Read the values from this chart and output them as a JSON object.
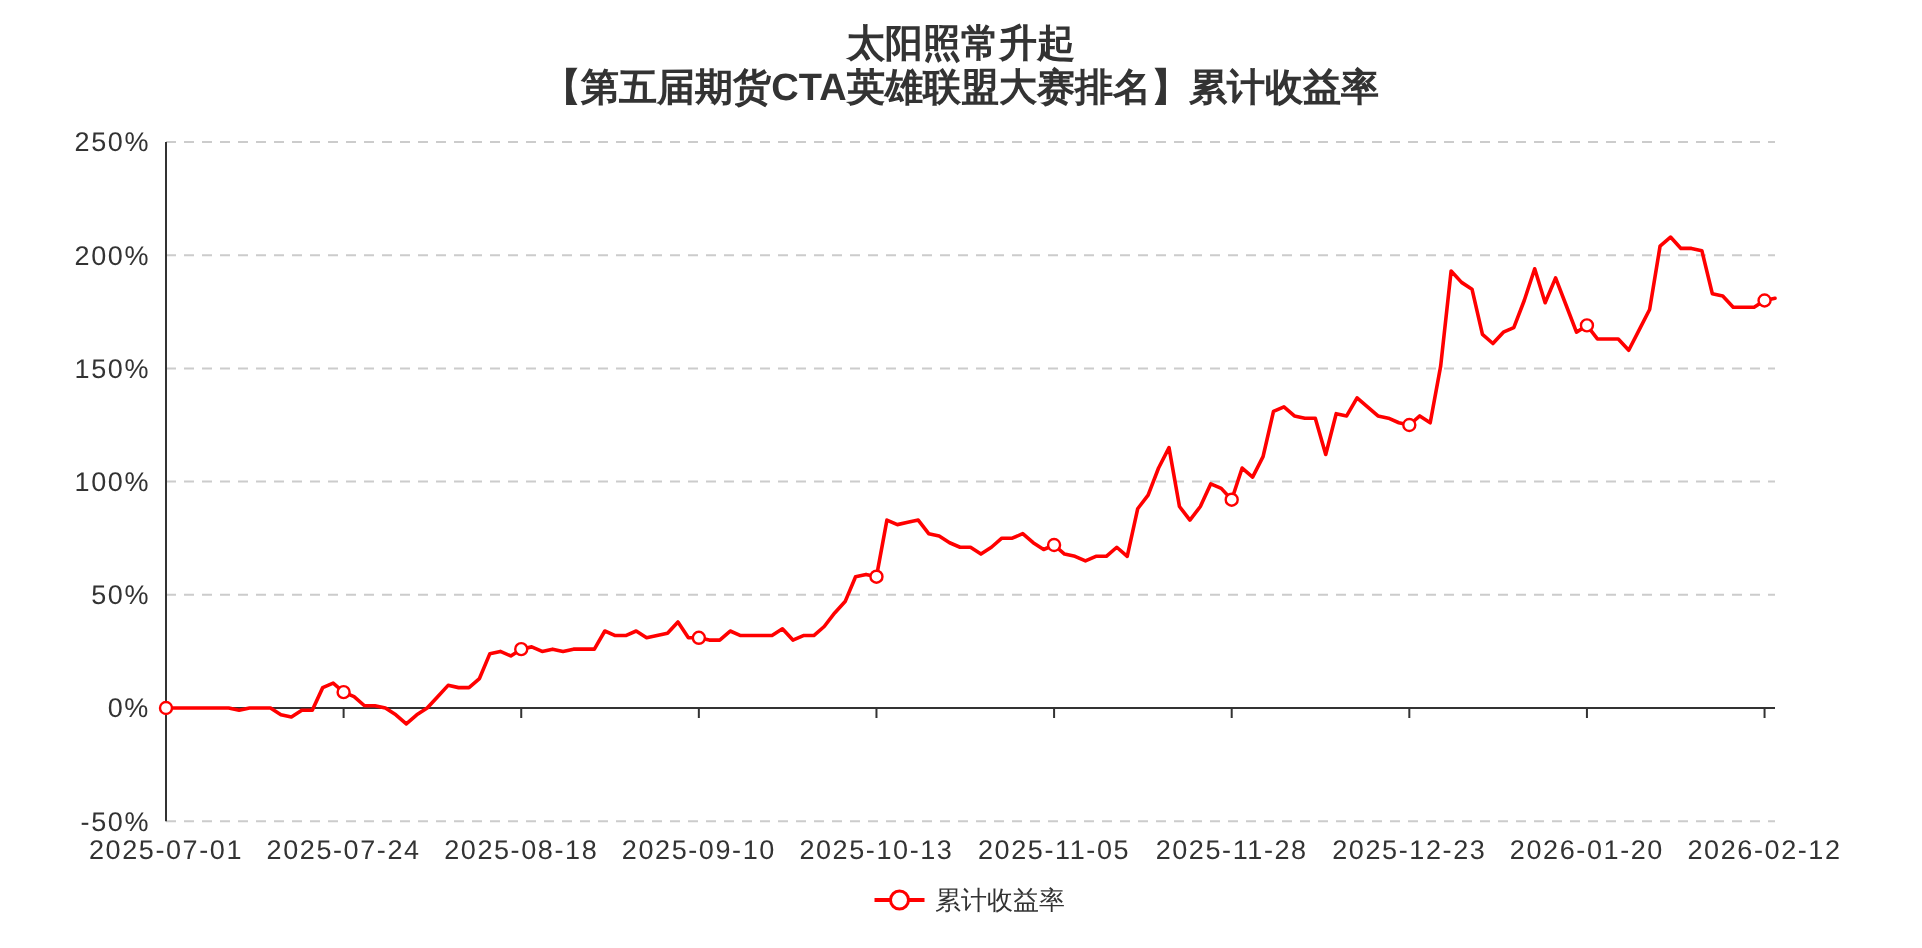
{
  "chart_data": {
    "type": "line",
    "title": "太阳照常升起",
    "subtitle": "【第五届期货CTA英雄联盟大赛排名】累计收益率",
    "categories": [
      "2025-07-01",
      null,
      null,
      null,
      null,
      null,
      null,
      null,
      null,
      null,
      null,
      null,
      null,
      null,
      null,
      null,
      null,
      "2025-07-24",
      null,
      null,
      null,
      null,
      null,
      null,
      null,
      null,
      null,
      null,
      null,
      null,
      null,
      null,
      null,
      null,
      "2025-08-18",
      null,
      null,
      null,
      null,
      null,
      null,
      null,
      null,
      null,
      null,
      null,
      null,
      null,
      null,
      null,
      null,
      "2025-09-10",
      null,
      null,
      null,
      null,
      null,
      null,
      null,
      null,
      null,
      null,
      null,
      null,
      null,
      null,
      null,
      null,
      "2025-10-13",
      null,
      null,
      null,
      null,
      null,
      null,
      null,
      null,
      null,
      null,
      null,
      null,
      null,
      null,
      null,
      null,
      "2025-11-05",
      null,
      null,
      null,
      null,
      null,
      null,
      null,
      null,
      null,
      null,
      null,
      null,
      null,
      null,
      null,
      null,
      "2025-11-28",
      null,
      null,
      null,
      null,
      null,
      null,
      null,
      null,
      null,
      null,
      null,
      null,
      null,
      null,
      null,
      null,
      "2025-12-23",
      null,
      null,
      null,
      null,
      null,
      null,
      null,
      null,
      null,
      null,
      null,
      null,
      null,
      null,
      null,
      null,
      "2026-01-20",
      null,
      null,
      null,
      null,
      null,
      null,
      null,
      null,
      null,
      null,
      null,
      null,
      null,
      null,
      null,
      null,
      "2026-02-12",
      null
    ],
    "series": [
      {
        "name": "累计收益率",
        "color": "#ff0000",
        "values": [
          0,
          0,
          0,
          0,
          0,
          0,
          0,
          -1,
          0,
          0,
          0,
          -3,
          -4,
          -1,
          -1,
          9,
          11,
          7,
          5,
          1,
          1,
          0,
          -3,
          -7,
          -3,
          0,
          5,
          10,
          9,
          9,
          13,
          24,
          25,
          23,
          26,
          27,
          25,
          26,
          25,
          26,
          26,
          26,
          34,
          32,
          32,
          34,
          31,
          32,
          33,
          38,
          31,
          31,
          30,
          30,
          34,
          32,
          32,
          32,
          32,
          35,
          30,
          32,
          32,
          36,
          42,
          47,
          58,
          59,
          58,
          83,
          81,
          82,
          83,
          77,
          76,
          73,
          71,
          71,
          68,
          71,
          75,
          75,
          77,
          73,
          70,
          72,
          68,
          67,
          65,
          67,
          67,
          71,
          67,
          88,
          94,
          106,
          115,
          89,
          83,
          89,
          99,
          97,
          92,
          106,
          102,
          111,
          131,
          133,
          129,
          128,
          128,
          112,
          130,
          129,
          137,
          133,
          129,
          128,
          126,
          125,
          129,
          126,
          151,
          193,
          188,
          185,
          165,
          161,
          166,
          168,
          180,
          194,
          179,
          190,
          178,
          166,
          169,
          163,
          163,
          163,
          158,
          167,
          176,
          204,
          208,
          203,
          203,
          202,
          183,
          182,
          177,
          177,
          177,
          180,
          181
        ]
      },
      {
        "type": "scatter",
        "color": "#ff0000",
        "marker": "circle",
        "values": [
          0,
          null,
          null,
          null,
          null,
          null,
          null,
          null,
          null,
          null,
          null,
          null,
          null,
          null,
          null,
          null,
          null,
          7,
          null,
          null,
          null,
          null,
          null,
          null,
          null,
          null,
          null,
          null,
          null,
          null,
          null,
          null,
          null,
          null,
          26,
          null,
          null,
          null,
          null,
          null,
          null,
          null,
          null,
          null,
          null,
          null,
          null,
          null,
          null,
          null,
          null,
          31,
          null,
          null,
          null,
          null,
          null,
          null,
          null,
          null,
          null,
          null,
          null,
          null,
          null,
          null,
          null,
          null,
          58,
          null,
          null,
          null,
          null,
          null,
          null,
          null,
          null,
          null,
          null,
          null,
          null,
          null,
          null,
          null,
          null,
          72,
          null,
          null,
          null,
          null,
          null,
          null,
          null,
          null,
          null,
          null,
          null,
          null,
          null,
          null,
          null,
          null,
          92,
          null,
          null,
          null,
          null,
          null,
          null,
          null,
          null,
          null,
          null,
          null,
          null,
          null,
          null,
          null,
          null,
          125,
          null,
          null,
          null,
          null,
          null,
          null,
          null,
          null,
          null,
          null,
          null,
          null,
          null,
          null,
          null,
          null,
          169,
          null,
          null,
          null,
          null,
          null,
          null,
          null,
          null,
          null,
          null,
          null,
          null,
          null,
          null,
          null,
          null,
          180,
          null
        ]
      }
    ],
    "ylim": [
      -50,
      250
    ],
    "yticks": [
      {
        "value": -50,
        "label": "-50%"
      },
      {
        "value": 0,
        "label": "0%"
      },
      {
        "value": 50,
        "label": "50%"
      },
      {
        "value": 100,
        "label": "100%"
      },
      {
        "value": 150,
        "label": "150%"
      },
      {
        "value": 200,
        "label": "200%"
      },
      {
        "value": 250,
        "label": "250%"
      }
    ],
    "grid": "y",
    "legend": "bottom",
    "line_style": "solid"
  }
}
